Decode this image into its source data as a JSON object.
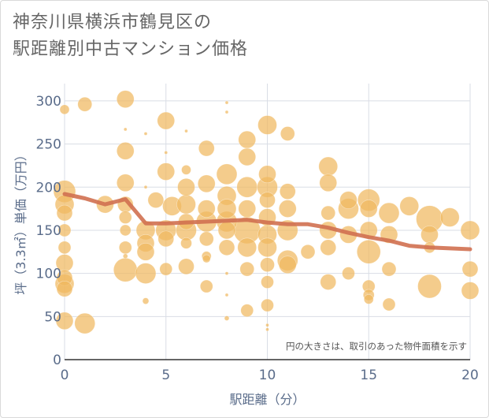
{
  "title_line1": "神奈川県横浜市鶴見区の",
  "title_line2": "駅距離別中古マンション価格",
  "chart_data": {
    "type": "scatter",
    "title": "神奈川県横浜市鶴見区の駅距離別中古マンション価格",
    "xlabel": "駅距離（分）",
    "ylabel": "坪（3.3㎡）単価（万円）",
    "xlim": [
      0,
      20
    ],
    "ylim": [
      0,
      320
    ],
    "xticks": [
      "0",
      "5",
      "10",
      "15",
      "20"
    ],
    "yticks": [
      "0",
      "50",
      "100",
      "150",
      "200",
      "250",
      "300"
    ],
    "grid": true,
    "annotation": "円の大きさは、取引のあった物件面積を示す",
    "colors": {
      "bubble": "#f0b860",
      "line": "#d07050",
      "grid": "#d9dde5",
      "tick": "#5a6c8a"
    },
    "series": [
      {
        "type": "bubble",
        "points": [
          [
            0,
            290,
            6
          ],
          [
            1,
            296,
            9
          ],
          [
            3,
            302,
            11
          ],
          [
            5,
            277,
            11
          ],
          [
            5,
            218,
            11
          ],
          [
            5,
            240,
            2
          ],
          [
            4.5,
            185,
            10
          ],
          [
            5.3,
            178,
            12
          ],
          [
            6,
            200,
            11
          ],
          [
            6,
            180,
            12
          ],
          [
            6,
            160,
            10
          ],
          [
            6,
            150,
            13
          ],
          [
            7,
            245,
            10
          ],
          [
            7,
            204,
            11
          ],
          [
            7,
            175,
            11
          ],
          [
            7,
            160,
            13
          ],
          [
            7,
            140,
            9
          ],
          [
            7,
            120,
            6
          ],
          [
            7,
            85,
            8
          ],
          [
            8,
            215,
            13
          ],
          [
            8,
            190,
            12
          ],
          [
            8,
            175,
            12
          ],
          [
            8,
            160,
            13
          ],
          [
            8,
            150,
            11
          ],
          [
            8,
            130,
            10
          ],
          [
            8,
            75,
            2
          ],
          [
            9,
            255,
            11
          ],
          [
            9,
            235,
            11
          ],
          [
            9,
            200,
            13
          ],
          [
            9,
            175,
            11
          ],
          [
            9,
            150,
            17
          ],
          [
            9,
            130,
            12
          ],
          [
            9,
            105,
            9
          ],
          [
            9,
            57,
            8
          ],
          [
            10,
            272,
            12
          ],
          [
            10,
            215,
            11
          ],
          [
            10,
            200,
            13
          ],
          [
            10,
            185,
            10
          ],
          [
            10,
            165,
            11
          ],
          [
            10,
            145,
            12
          ],
          [
            10,
            130,
            12
          ],
          [
            10,
            110,
            9
          ],
          [
            10,
            90,
            8
          ],
          [
            10,
            63,
            8
          ],
          [
            11,
            262,
            9
          ],
          [
            11,
            195,
            10
          ],
          [
            11,
            175,
            11
          ],
          [
            11,
            150,
            13
          ],
          [
            11,
            115,
            13
          ],
          [
            11,
            110,
            11
          ],
          [
            12,
            125,
            9
          ],
          [
            13,
            224,
            12
          ],
          [
            13,
            205,
            11
          ],
          [
            13,
            170,
            9
          ],
          [
            13,
            150,
            11
          ],
          [
            13,
            130,
            10
          ],
          [
            13,
            90,
            10
          ],
          [
            14,
            185,
            11
          ],
          [
            14,
            175,
            13
          ],
          [
            14,
            145,
            11
          ],
          [
            14,
            100,
            8
          ],
          [
            15,
            185,
            14
          ],
          [
            15,
            175,
            11
          ],
          [
            15,
            150,
            11
          ],
          [
            15,
            125,
            15
          ],
          [
            15,
            85,
            8
          ],
          [
            15,
            75,
            7
          ],
          [
            15,
            70,
            6
          ],
          [
            16,
            170,
            13
          ],
          [
            16,
            145,
            11
          ],
          [
            16,
            105,
            9
          ],
          [
            16,
            64,
            8
          ],
          [
            17,
            178,
            12
          ],
          [
            18,
            163,
            17
          ],
          [
            18,
            145,
            11
          ],
          [
            18,
            130,
            7
          ],
          [
            18,
            85,
            15
          ],
          [
            19,
            165,
            12
          ],
          [
            20,
            150,
            12
          ],
          [
            20,
            105,
            10
          ],
          [
            20,
            80,
            11
          ],
          [
            0,
            195,
            14
          ],
          [
            0,
            180,
            12
          ],
          [
            0,
            170,
            10
          ],
          [
            0,
            150,
            8
          ],
          [
            0,
            130,
            8
          ],
          [
            0,
            112,
            11
          ],
          [
            0,
            95,
            10
          ],
          [
            0,
            88,
            12
          ],
          [
            0,
            82,
            10
          ],
          [
            0,
            45,
            11
          ],
          [
            1,
            42,
            13
          ],
          [
            2,
            180,
            11
          ],
          [
            3,
            242,
            11
          ],
          [
            3,
            205,
            11
          ],
          [
            3,
            180,
            10
          ],
          [
            3,
            165,
            8
          ],
          [
            3,
            150,
            7
          ],
          [
            3,
            130,
            8
          ],
          [
            3,
            104,
            15
          ],
          [
            3,
            267,
            2
          ],
          [
            3,
            120,
            3
          ],
          [
            4,
            150,
            12
          ],
          [
            4,
            135,
            11
          ],
          [
            4,
            125,
            11
          ],
          [
            4,
            100,
            13
          ],
          [
            4,
            68,
            4
          ],
          [
            4,
            262,
            2
          ],
          [
            4,
            200,
            2
          ],
          [
            5,
            150,
            13
          ],
          [
            5,
            140,
            10
          ],
          [
            5,
            105,
            8
          ],
          [
            6,
            135,
            7
          ],
          [
            6,
            108,
            10
          ],
          [
            6,
            220,
            6
          ],
          [
            6,
            265,
            2
          ],
          [
            7,
            117,
            5
          ],
          [
            8,
            100,
            2
          ],
          [
            8,
            48,
            3
          ],
          [
            8,
            298,
            2
          ],
          [
            8,
            287,
            2
          ],
          [
            10,
            40,
            2
          ],
          [
            10,
            35,
            2
          ]
        ]
      },
      {
        "type": "line",
        "name": "",
        "x": [
          0,
          1,
          2,
          3,
          4,
          5,
          6,
          7,
          8,
          9,
          10,
          11,
          12,
          13,
          14,
          15,
          16,
          17,
          18,
          19,
          20
        ],
        "y": [
          192,
          187,
          180,
          186,
          158,
          158,
          159,
          160,
          161,
          162,
          159,
          157,
          157,
          153,
          147,
          142,
          138,
          132,
          130,
          129,
          128
        ]
      }
    ]
  }
}
